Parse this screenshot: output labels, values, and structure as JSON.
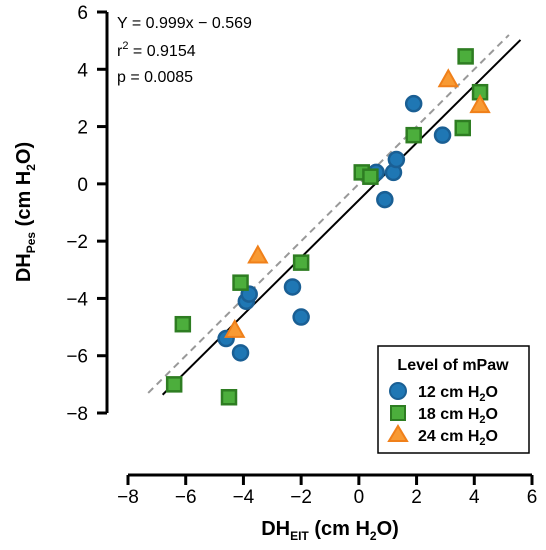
{
  "chart_data": {
    "type": "scatter",
    "xlabel": {
      "main": "DH",
      "sub": "EIT",
      "rest": " (cm H",
      "sub2": "2",
      "end": "O)"
    },
    "ylabel": {
      "main": "DH",
      "sub": "Pes",
      "rest": "  (cm H",
      "sub2": "2",
      "end": "O)"
    },
    "xlim": [
      -8,
      6
    ],
    "ylim": [
      -8,
      6
    ],
    "x_ticks": [
      -8,
      -6,
      -4,
      -2,
      0,
      2,
      4,
      6
    ],
    "y_ticks": [
      -8,
      -6,
      -4,
      -2,
      0,
      2,
      4,
      6
    ],
    "x_tick_labels": [
      "−8",
      "−6",
      "−4",
      "−2",
      "0",
      "2",
      "4",
      "6"
    ],
    "y_tick_labels": [
      "−8",
      "−6",
      "−4",
      "−2",
      "0",
      "2",
      "4",
      "6"
    ],
    "grid": false,
    "stats": {
      "equation": "Y = 0.999x − 0.569",
      "r2_prefix": "r",
      "r2_sup": "2",
      "r2_value": " = 0.9154",
      "p": "p = 0.0085"
    },
    "regression_line": {
      "slope": 0.999,
      "intercept": -0.569,
      "color": "#000000",
      "style": "solid"
    },
    "identity_line": {
      "slope": 1,
      "intercept": 0,
      "color": "#999999",
      "style": "dashed"
    },
    "legend": {
      "title": "Level of mPaw",
      "placement": "bottom-right",
      "entries": [
        {
          "label_main": "12 cm H",
          "label_sub": "2",
          "label_end": "O"
        },
        {
          "label_main": "18 cm H",
          "label_sub": "2",
          "label_end": "O"
        },
        {
          "label_main": "24 cm H",
          "label_sub": "2",
          "label_end": "O"
        }
      ]
    },
    "series": [
      {
        "marker": "circle",
        "fill": "#1f77b4",
        "stroke": "#1a5f94",
        "points": [
          [
            -4.6,
            -5.4
          ],
          [
            -4.1,
            -5.9
          ],
          [
            -3.9,
            -4.1
          ],
          [
            -3.8,
            -3.85
          ],
          [
            -2.3,
            -3.6
          ],
          [
            -2.0,
            -4.65
          ],
          [
            0.6,
            0.4
          ],
          [
            0.9,
            -0.55
          ],
          [
            1.2,
            0.4
          ],
          [
            1.3,
            0.85
          ],
          [
            1.9,
            2.8
          ],
          [
            2.9,
            1.7
          ]
        ]
      },
      {
        "marker": "square",
        "fill": "#4cae3c",
        "stroke": "#2e7d22",
        "points": [
          [
            -6.4,
            -7.0
          ],
          [
            -6.1,
            -4.9
          ],
          [
            -4.5,
            -7.45
          ],
          [
            -4.1,
            -3.45
          ],
          [
            -2.0,
            -2.75
          ],
          [
            0.1,
            0.4
          ],
          [
            0.4,
            0.25
          ],
          [
            1.9,
            1.7
          ],
          [
            3.6,
            1.95
          ],
          [
            3.7,
            4.45
          ],
          [
            4.2,
            3.2
          ]
        ]
      },
      {
        "marker": "triangle",
        "fill": "#f89a33",
        "stroke": "#f0801a",
        "points": [
          [
            -4.3,
            -5.1
          ],
          [
            -3.5,
            -2.5
          ],
          [
            3.1,
            3.65
          ],
          [
            4.2,
            2.75
          ]
        ]
      }
    ]
  }
}
